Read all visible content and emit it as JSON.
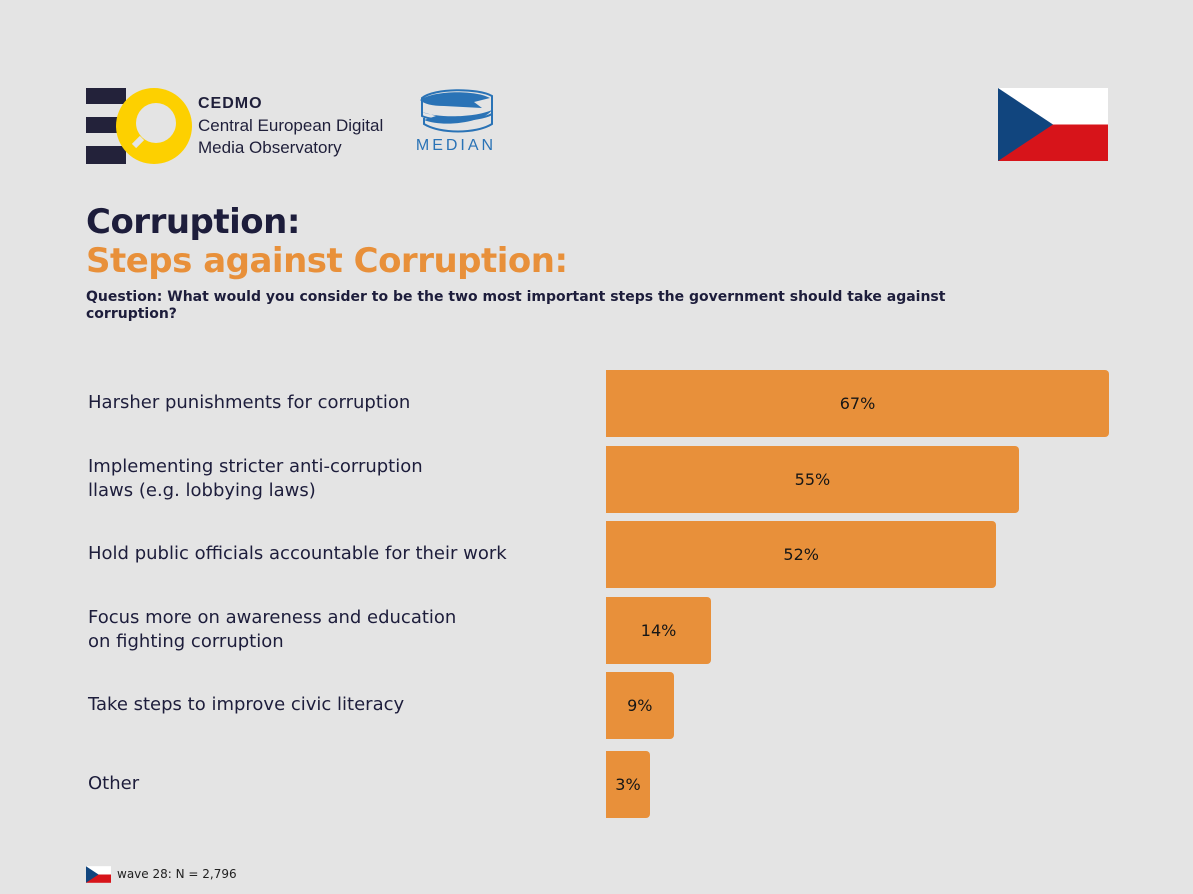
{
  "header": {
    "cedmo": {
      "name": "CEDMO",
      "line1": "Central European Digital",
      "line2": "Media Observatory"
    },
    "median": {
      "name": "MEDIAN"
    },
    "flag_icon": "czech-flag-icon"
  },
  "title": {
    "main": "Corruption:",
    "sub": "Steps against Corruption:"
  },
  "question": "Question: What would you consider to be the two most important steps the government should take against corruption?",
  "colors": {
    "bar": "#e8903a",
    "title_dark": "#1d1d3b",
    "title_accent": "#e8903a",
    "background": "#e4e4e4"
  },
  "chart_data": {
    "type": "bar",
    "orientation": "horizontal",
    "title": "Steps against Corruption:",
    "categories": [
      "Harsher punishments for corruption",
      "Implementing stricter anti-corruption\nllaws (e.g. lobbying laws)",
      "Hold public officials accountable for their work",
      "Focus more on awareness and education\non fighting corruption",
      "Take steps to improve civic literacy",
      "Other"
    ],
    "values": [
      67,
      55,
      52,
      14,
      9,
      3
    ],
    "value_labels": [
      "67%",
      "55%",
      "52%",
      "14%",
      "9%",
      "3%"
    ],
    "unit": "%",
    "grid": false,
    "xlabel": "",
    "ylabel": ""
  },
  "footer": {
    "text": "wave 28: N = 2,796"
  }
}
